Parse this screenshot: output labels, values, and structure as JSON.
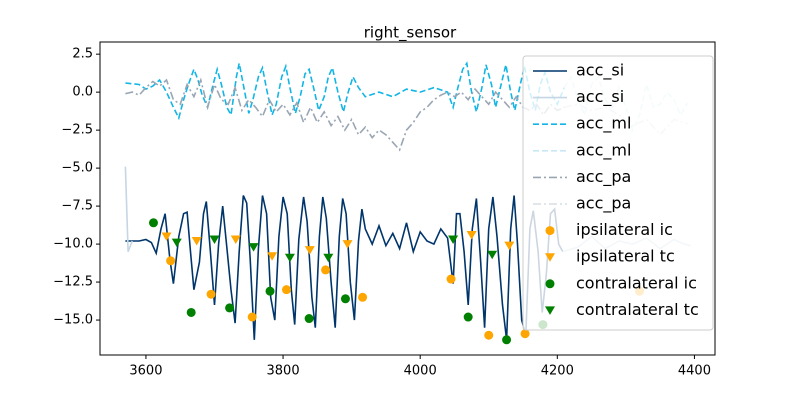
{
  "chart_data": {
    "type": "line",
    "title": "right_sensor",
    "xlim": [
      3533,
      4430
    ],
    "ylim": [
      -17.3,
      3.3
    ],
    "xticks": [
      3600,
      3800,
      4000,
      4200,
      4400
    ],
    "yticks": [
      {
        "value": 2.5,
        "label": "2.5"
      },
      {
        "value": 0,
        "label": "0.0"
      },
      {
        "value": -2.5,
        "label": "−2.5"
      },
      {
        "value": -5,
        "label": "−5.0"
      },
      {
        "value": -7.5,
        "label": "−7.5"
      },
      {
        "value": -10,
        "label": "−10.0"
      },
      {
        "value": -12.5,
        "label": "−12.5"
      },
      {
        "value": -15,
        "label": "−15.0"
      }
    ],
    "legend": "upper right",
    "series": [
      {
        "name": "acc_si",
        "color": "#00356b",
        "linestyle": "solid",
        "x": [
          3570,
          3590,
          3600,
          3608,
          3615,
          3622,
          3628,
          3635,
          3640,
          3648,
          3655,
          3660,
          3665,
          3670,
          3678,
          3684,
          3688,
          3694,
          3700,
          3706,
          3712,
          3718,
          3724,
          3730,
          3736,
          3742,
          3747,
          3752,
          3758,
          3764,
          3770,
          3776,
          3782,
          3788,
          3794,
          3800,
          3806,
          3812,
          3817,
          3823,
          3830,
          3835,
          3842,
          3847,
          3853,
          3858,
          3863,
          3870,
          3876,
          3882,
          3887,
          3892,
          3898,
          3904,
          3910,
          3915,
          3920,
          3930,
          3940,
          3950,
          3960,
          3970,
          3980,
          3990,
          4000,
          4010,
          4020,
          4030,
          4040,
          4048,
          4053,
          4058,
          4064,
          4070,
          4076,
          4082,
          4088,
          4094,
          4100,
          4106,
          4112,
          4120,
          4126,
          4132,
          4137,
          4142,
          4148,
          4154,
          4160,
          4165,
          4172,
          4178,
          4184,
          4190,
          4196,
          4202,
          4208
        ],
        "values": [
          -9.8,
          -9.8,
          -9.7,
          -9.9,
          -10.6,
          -9.0,
          -8.0,
          -11.0,
          -12.6,
          -9.5,
          -8.0,
          -7.9,
          -10.5,
          -13.0,
          -11.2,
          -8.0,
          -7.2,
          -10.5,
          -14.0,
          -10.0,
          -7.5,
          -10.2,
          -13.0,
          -15.2,
          -10.5,
          -6.8,
          -7.3,
          -11.0,
          -16.3,
          -10.3,
          -6.8,
          -8.0,
          -13.5,
          -15.0,
          -9.5,
          -6.9,
          -8.0,
          -13.0,
          -15.3,
          -9.7,
          -6.9,
          -8.5,
          -13.5,
          -15.5,
          -9.5,
          -6.9,
          -8.3,
          -12.5,
          -15.5,
          -9.5,
          -7.0,
          -8.0,
          -12.5,
          -15.0,
          -9.8,
          -7.7,
          -9.0,
          -10.0,
          -8.8,
          -10.1,
          -9.3,
          -10.3,
          -8.6,
          -10.5,
          -9.2,
          -9.8,
          -10.0,
          -9.0,
          -9.6,
          -12.6,
          -8.0,
          -8.0,
          -10.5,
          -14.0,
          -9.0,
          -7.0,
          -11.0,
          -15.5,
          -9.0,
          -6.9,
          -9.5,
          -14.0,
          -16.3,
          -9.0,
          -6.8,
          -10.0,
          -15.0,
          -16.0,
          -9.0,
          -7.8,
          -10.5,
          -14.5,
          -12.0,
          -8.0,
          -7.7,
          -10.0,
          -10.5
        ]
      },
      {
        "name": "acc_si",
        "color": "#c5d6e4",
        "linestyle": "solid",
        "x": [
          3570,
          3574,
          3580,
          3590,
          4208,
          4230,
          4250,
          4270,
          4290,
          4310,
          4330,
          4350,
          4370,
          4385,
          4395
        ],
        "values": [
          -4.9,
          -10.5,
          -9.8,
          null,
          -10.5,
          -10.2,
          -9.5,
          -10.3,
          -9.8,
          -10.0,
          -9.6,
          -10.3,
          -9.7,
          -10.0,
          -10.1
        ]
      },
      {
        "name": "acc_ml",
        "color": "#13b5e5",
        "linestyle": "dashed",
        "x": [
          3570,
          3590,
          3600,
          3610,
          3620,
          3630,
          3640,
          3648,
          3655,
          3662,
          3670,
          3676,
          3682,
          3690,
          3698,
          3704,
          3710,
          3718,
          3724,
          3732,
          3736,
          3742,
          3750,
          3756,
          3764,
          3770,
          3776,
          3784,
          3790,
          3798,
          3804,
          3810,
          3818,
          3825,
          3832,
          3838,
          3845,
          3852,
          3860,
          3866,
          3872,
          3880,
          3888,
          3895,
          3902,
          3910,
          3920,
          3940,
          3960,
          3980,
          4000,
          4020,
          4040,
          4048,
          4055,
          4062,
          4068,
          4075,
          4082,
          4090,
          4096,
          4104,
          4110,
          4118,
          4125,
          4132,
          4138,
          4146,
          4152,
          4160,
          4168,
          4175,
          4182,
          4190,
          4200,
          4210
        ],
        "values": [
          0.6,
          0.5,
          0.2,
          0.4,
          0.8,
          0.0,
          -1.0,
          -1.7,
          -0.5,
          0.5,
          1.5,
          0.8,
          -0.2,
          -1.0,
          0.5,
          1.5,
          0.5,
          -1.0,
          -1.5,
          1.0,
          1.9,
          0.5,
          -1.4,
          -0.5,
          1.0,
          1.6,
          0.2,
          -1.5,
          -0.8,
          1.0,
          1.7,
          0.3,
          -1.4,
          -0.3,
          1.2,
          1.5,
          0.2,
          -1.2,
          -0.3,
          1.0,
          1.6,
          0.0,
          -1.3,
          0.0,
          1.0,
          0.3,
          -0.3,
          0.0,
          -0.3,
          0.2,
          0.0,
          0.3,
          0.0,
          -1.0,
          0.3,
          1.5,
          1.9,
          0.0,
          -1.3,
          0.3,
          1.8,
          0.5,
          -1.0,
          0.5,
          1.8,
          0.0,
          -1.2,
          0.5,
          1.7,
          0.0,
          -1.2,
          0.5,
          1.3,
          0.0,
          -0.8,
          0.3
        ]
      },
      {
        "name": "acc_ml",
        "color": "#c9e8f5",
        "linestyle": "dashed",
        "x": [
          4210,
          4220,
          4230,
          4240,
          4250,
          4260,
          4270,
          4280,
          4290,
          4300,
          4310,
          4320,
          4330,
          4340,
          4350,
          4360,
          4370,
          4380,
          4390
        ],
        "values": [
          0.3,
          1.0,
          -0.5,
          -1.5,
          0.5,
          1.0,
          -0.5,
          -1.0,
          0.3,
          -1.0,
          -2.5,
          -1.5,
          0.5,
          -1.0,
          -0.8,
          0.0,
          -0.5,
          -1.5,
          -0.7
        ]
      },
      {
        "name": "acc_pa",
        "color": "#9aa6b4",
        "linestyle": "dashdot",
        "x": [
          3570,
          3580,
          3590,
          3600,
          3610,
          3620,
          3630,
          3640,
          3650,
          3660,
          3670,
          3680,
          3690,
          3700,
          3710,
          3720,
          3730,
          3740,
          3750,
          3760,
          3770,
          3780,
          3790,
          3800,
          3810,
          3820,
          3830,
          3840,
          3850,
          3860,
          3870,
          3880,
          3890,
          3900,
          3910,
          3920,
          3930,
          3940,
          3950,
          3960,
          3970,
          3980,
          3990,
          4000,
          4010,
          4020,
          4030,
          4040,
          4050,
          4060,
          4070,
          4080,
          4090,
          4100,
          4110,
          4120,
          4130,
          4140,
          4150,
          4160,
          4170,
          4180,
          4190,
          4200,
          4210
        ],
        "values": [
          -0.1,
          0.0,
          -0.2,
          0.3,
          0.7,
          0.4,
          0.8,
          -0.5,
          -0.8,
          0.5,
          -0.3,
          0.8,
          -1.0,
          0.5,
          -0.5,
          -0.8,
          0.3,
          -1.2,
          -0.5,
          -1.0,
          -1.6,
          -0.5,
          -1.3,
          -0.8,
          -1.5,
          -0.7,
          -2.0,
          -1.0,
          -2.0,
          -1.3,
          -2.2,
          -1.6,
          -2.5,
          -1.8,
          -2.8,
          -2.3,
          -3.0,
          -2.5,
          -2.8,
          -3.3,
          -3.8,
          -2.5,
          -2.0,
          -1.3,
          -1.0,
          -0.5,
          -0.2,
          0.0,
          -0.3,
          0.0,
          -0.5,
          0.2,
          -0.3,
          -0.8,
          0.0,
          -0.5,
          -1.0,
          -0.3,
          -1.0,
          -1.2,
          -0.8,
          -1.5,
          -0.8,
          -1.2,
          -1.0
        ]
      },
      {
        "name": "acc_pa",
        "color": "#d7dde3",
        "linestyle": "dashdot",
        "x": [
          4210,
          4230,
          4250,
          4270,
          4290,
          4310,
          4330,
          4350,
          4370,
          4390
        ],
        "values": [
          -1.0,
          -0.8,
          -1.2,
          -1.0,
          -1.5,
          -2.2,
          -1.8,
          -2.8,
          -1.8,
          -2.1
        ]
      }
    ],
    "scatter_series": [
      {
        "name": "ipsilateral ic",
        "color": "#ffa500",
        "marker": "o",
        "x": [
          3636,
          3695,
          3755,
          3805,
          3862,
          3916,
          4045,
          4100,
          4153,
          4320
        ],
        "values": [
          -11.1,
          -13.3,
          -14.8,
          -13.0,
          -11.7,
          -13.5,
          -12.3,
          -16.0,
          -15.9,
          -13.1
        ]
      },
      {
        "name": "ipsilateral tc",
        "color": "#ffa500",
        "marker": "v",
        "x": [
          3630,
          3674,
          3731,
          3784,
          3839,
          3894,
          4075,
          4130
        ],
        "values": [
          -9.5,
          -9.8,
          -9.7,
          -10.8,
          -10.4,
          -10.0,
          -9.4,
          -10.1
        ]
      },
      {
        "name": "contralateral ic",
        "color": "#008000",
        "marker": "o",
        "x": [
          3611,
          3666,
          3722,
          3781,
          3838,
          3891,
          4070,
          4126,
          4179
        ],
        "values": [
          -8.6,
          -14.5,
          -14.2,
          -13.1,
          -14.9,
          -13.6,
          -14.8,
          -16.3,
          -15.3
        ]
      },
      {
        "name": "contralateral tc",
        "color": "#008000",
        "marker": "v",
        "x": [
          3645,
          3700,
          3757,
          3810,
          3866,
          4048,
          4105
        ],
        "values": [
          -9.9,
          -9.7,
          -10.2,
          -10.9,
          -10.9,
          -9.7,
          -10.7
        ]
      }
    ]
  }
}
